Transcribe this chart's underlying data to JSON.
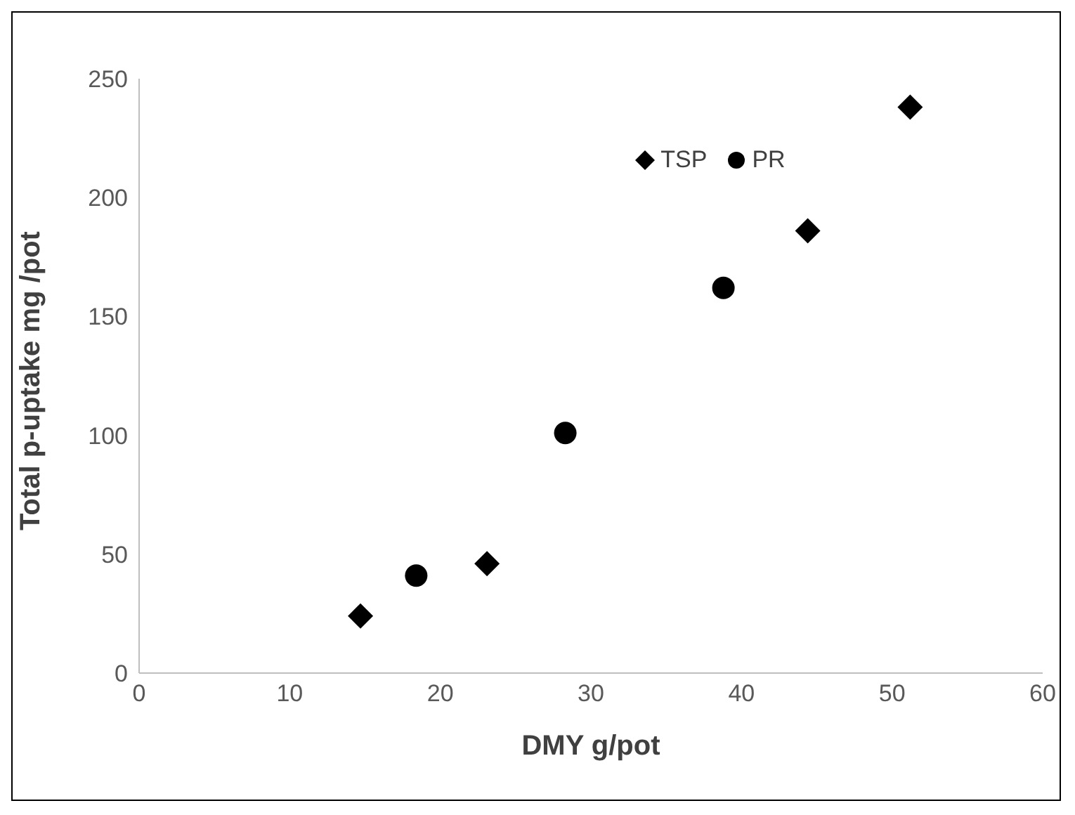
{
  "chart_data": {
    "type": "scatter",
    "xlabel": "DMY g/pot",
    "ylabel": "Total p-uptake mg /pot",
    "series": [
      {
        "name": "TSP",
        "color": "#000000",
        "marker": "diamond",
        "x": [
          14.7,
          23.1,
          44.4,
          51.2
        ],
        "values": [
          24,
          46,
          186,
          238
        ]
      },
      {
        "name": "PR",
        "color": "#000000",
        "marker": "circle",
        "x": [
          18.4,
          28.3,
          38.8
        ],
        "values": [
          41,
          101,
          162
        ]
      }
    ],
    "xlim": [
      0,
      60
    ],
    "xticks": [
      0,
      10,
      20,
      30,
      40,
      50,
      60
    ],
    "ylim": [
      0,
      250
    ],
    "yticks": [
      0,
      50,
      100,
      150,
      200,
      250
    ],
    "grid": false,
    "legend": "top"
  }
}
